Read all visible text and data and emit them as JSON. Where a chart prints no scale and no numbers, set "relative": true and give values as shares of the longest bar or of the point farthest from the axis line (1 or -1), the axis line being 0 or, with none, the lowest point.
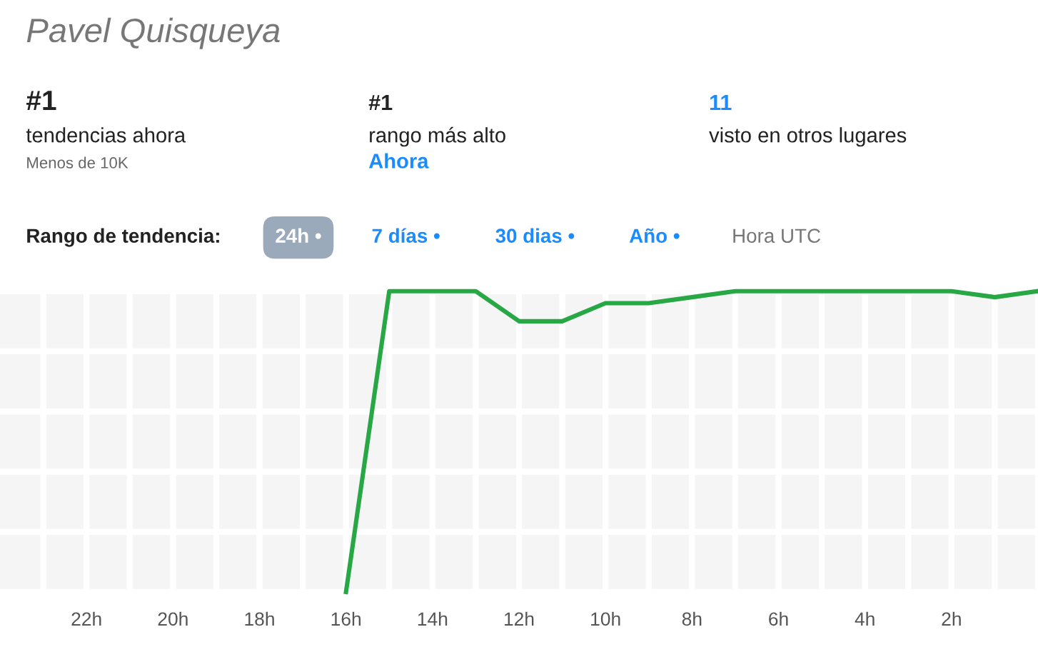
{
  "chart_data": {
    "type": "line",
    "title": "Pavel Quisqueya",
    "relative": true,
    "grid": true,
    "marker": "none",
    "line_style": "solid",
    "legend": false,
    "tick_labels": "x",
    "annotations": [
      "#1",
      "tendencias ahora",
      "Menos de 10K",
      "#1",
      "rango más alto",
      "Ahora",
      "11",
      "visto en otros lugares",
      "Rango de tendencia:",
      "24h •",
      "7 días •",
      "30 dias •",
      "Año •",
      "Hora UTC"
    ],
    "categories": [
      null,
      "22h",
      null,
      "20h",
      null,
      "18h",
      null,
      "16h",
      null,
      "14h",
      null,
      "12h",
      null,
      "10h",
      null,
      "8h",
      null,
      "6h",
      null,
      "4h",
      null,
      "2h",
      null,
      null
    ],
    "series": [
      {
        "color": "#28a745",
        "values": [
          null,
          null,
          null,
          null,
          null,
          null,
          null,
          0,
          1,
          1,
          1,
          0.9,
          0.9,
          0.96,
          0.96,
          0.98,
          1,
          1,
          1,
          1,
          1,
          1,
          0.98,
          1
        ]
      }
    ]
  }
}
